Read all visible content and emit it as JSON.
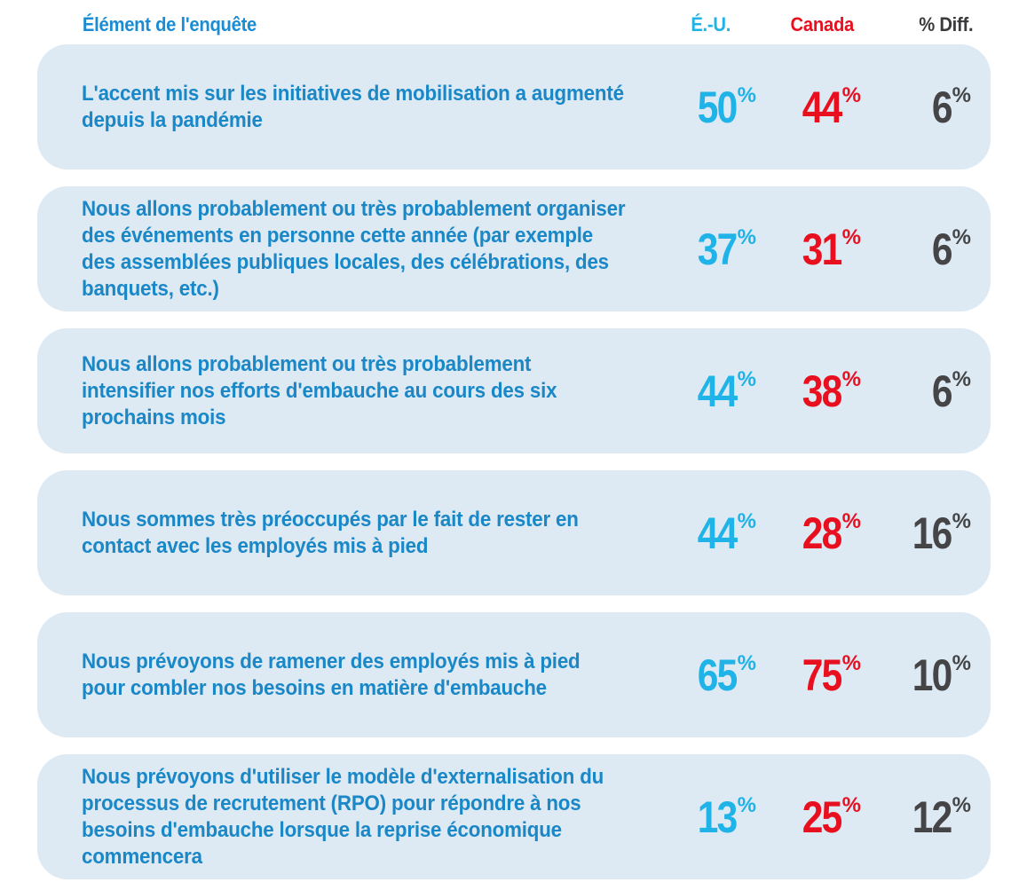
{
  "header": {
    "label": "Élément de l'enquête",
    "us": "É.-U.",
    "canada": "Canada",
    "diff": "% Diff."
  },
  "percent_sign": "%",
  "colors": {
    "us": "#1fb3e8",
    "canada": "#e8101f",
    "diff": "#454547",
    "row_background": "#dde9f3",
    "label_text": "#1a87c7"
  },
  "chart_data": {
    "type": "table",
    "columns": [
      "Élément de l'enquête",
      "É.-U.",
      "Canada",
      "% Diff."
    ],
    "rows": [
      {
        "label": "L'accent mis sur les initiatives de mobilisation a augmenté depuis la pandémie",
        "us": "50",
        "canada": "44",
        "diff": "6"
      },
      {
        "label": "Nous allons probablement ou très probablement organiser des événements en personne cette année (par exemple des assemblées publiques locales, des célébrations, des banquets, etc.)",
        "us": "37",
        "canada": "31",
        "diff": "6"
      },
      {
        "label": "Nous allons probablement ou très probablement intensifier nos efforts d'embauche au cours des six prochains mois",
        "us": "44",
        "canada": "38",
        "diff": "6"
      },
      {
        "label": "Nous sommes très préoccupés par le fait de rester en contact avec les employés mis à pied",
        "us": "44",
        "canada": "28",
        "diff": "16"
      },
      {
        "label": "Nous prévoyons de ramener des employés mis à pied pour combler nos besoins en matière d'embauche",
        "us": "65",
        "canada": "75",
        "diff": "10"
      },
      {
        "label": "Nous prévoyons d'utiliser le modèle d'externalisation du processus de recrutement (RPO) pour répondre à nos besoins d'embauche lorsque la reprise économique commencera",
        "us": "13",
        "canada": "25",
        "diff": "12"
      }
    ]
  }
}
